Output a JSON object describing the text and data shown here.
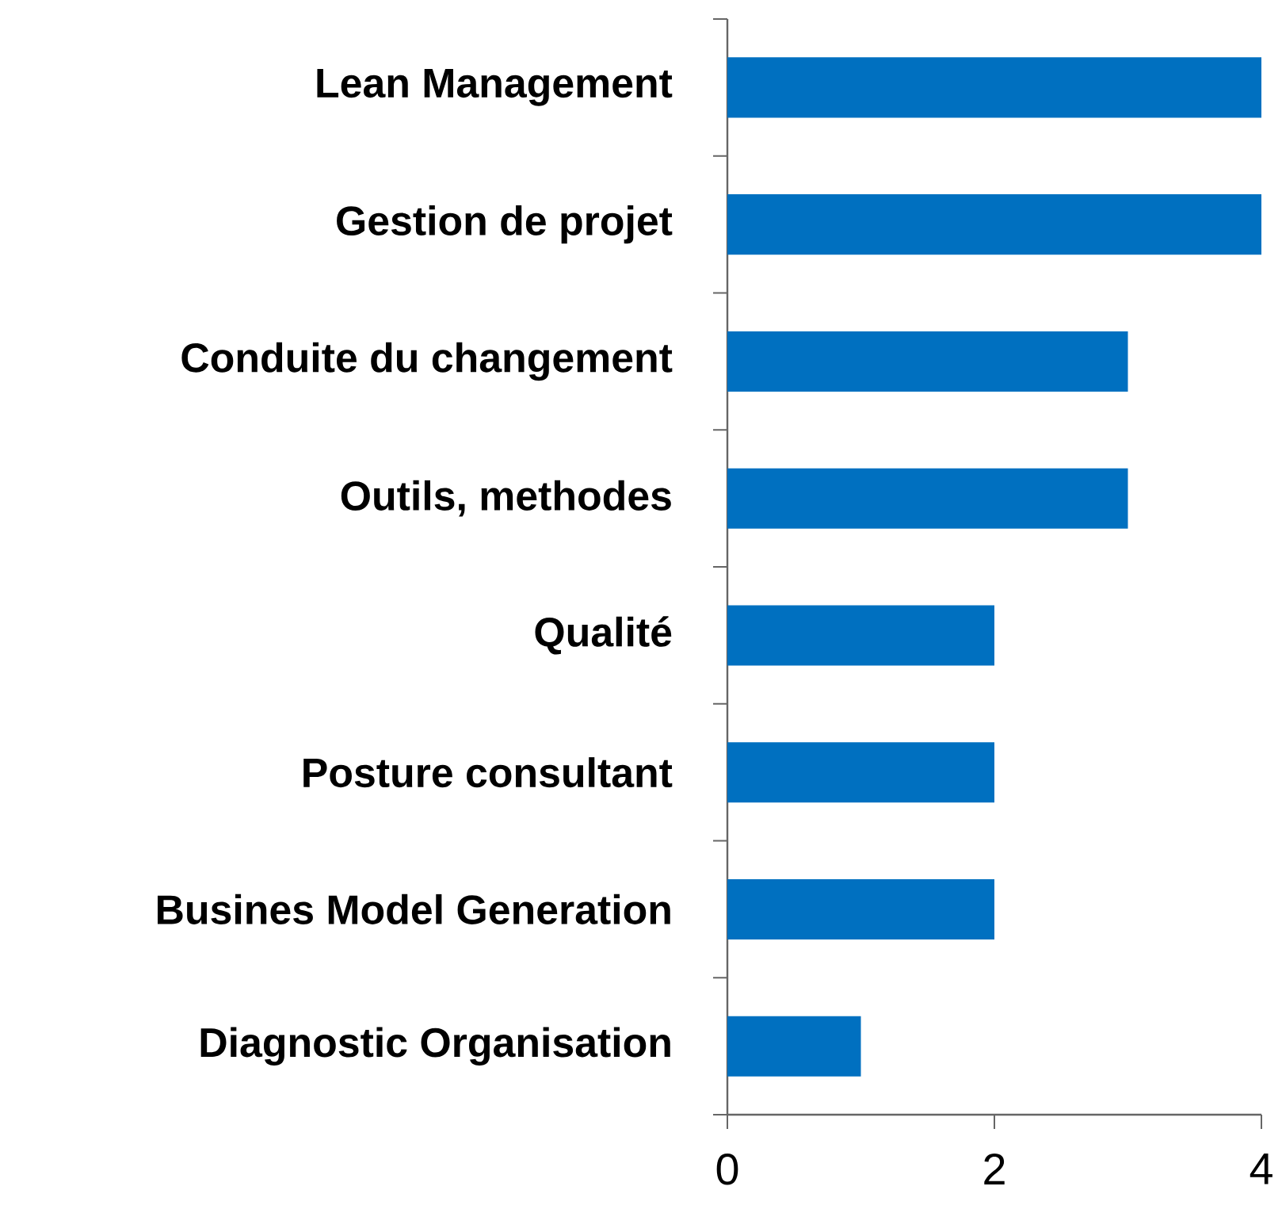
{
  "chart_data": {
    "type": "bar",
    "orientation": "horizontal",
    "categories": [
      "Lean Management",
      "Gestion de projet",
      "Conduite du changement",
      "Outils, methodes",
      "Qualité",
      "Posture consultant",
      "Busines Model Generation",
      "Diagnostic Organisation"
    ],
    "values": [
      4,
      4,
      3,
      3,
      2,
      2,
      2,
      1
    ],
    "color": "#0070c0",
    "xlim": [
      0,
      4
    ],
    "xticks": [
      0,
      2,
      4
    ],
    "grid": false
  }
}
